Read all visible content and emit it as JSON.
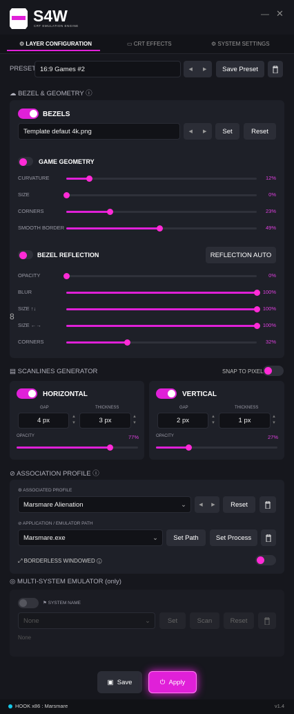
{
  "app": {
    "logo": "S4W",
    "tagline": "CRT EMULATION ENGINE"
  },
  "tabs": [
    "LAYER CONFIGURATION",
    "CRT EFFECTS",
    "SYSTEM SETTINGS"
  ],
  "preset": {
    "label": "PRESET",
    "value": "16:9 Games #2",
    "save": "Save Preset"
  },
  "bezel": {
    "title": "BEZEL & GEOMETRY",
    "bezels": {
      "label": "BEZELS",
      "file": "Template defaut 4k.png",
      "set": "Set",
      "reset": "Reset"
    },
    "geometry": {
      "label": "GAME GEOMETRY",
      "sliders": [
        {
          "name": "CURVATURE",
          "value": 12,
          "label": "12%"
        },
        {
          "name": "SIZE",
          "value": 0,
          "label": "0%"
        },
        {
          "name": "CORNERS",
          "value": 23,
          "label": "23%"
        },
        {
          "name": "SMOOTH BORDER",
          "value": 49,
          "label": "49%"
        }
      ]
    },
    "reflection": {
      "label": "BEZEL REFLECTION",
      "button": "REFLECTION AUTO",
      "sliders": [
        {
          "name": "OPACITY",
          "value": 0,
          "label": "0%"
        },
        {
          "name": "BLUR",
          "value": 100,
          "label": "100%"
        },
        {
          "name": "SIZE ↑↓",
          "value": 100,
          "label": "100%"
        },
        {
          "name": "SIZE ←→",
          "value": 100,
          "label": "100%"
        },
        {
          "name": "CORNERS",
          "value": 32,
          "label": "32%"
        }
      ]
    }
  },
  "scanlines": {
    "title": "SCANLINES GENERATOR",
    "snap": "SNAP TO PIXEL",
    "horizontal": {
      "label": "HORIZONTAL",
      "gap_label": "GAP",
      "gap": "4 px",
      "thickness_label": "THICKNESS",
      "thickness": "3 px",
      "opacity_label": "OPACITY",
      "opacity": {
        "value": 77,
        "label": "77%"
      }
    },
    "vertical": {
      "label": "VERTICAL",
      "gap_label": "GAP",
      "gap": "2 px",
      "thickness_label": "THICKNESS",
      "thickness": "1 px",
      "opacity_label": "OPACITY",
      "opacity": {
        "value": 27,
        "label": "27%"
      }
    }
  },
  "association": {
    "title": "ASSOCIATION PROFILE",
    "profile_label": "ASSOCIATED PROFILE",
    "profile": "Marsmare Alienation",
    "reset": "Reset",
    "path_label": "APPLICATION / EMULATOR PATH",
    "path": "Marsmare.exe",
    "set_path": "Set Path",
    "set_process": "Set Process",
    "borderless": "BORDERLESS WINDOWED"
  },
  "multi": {
    "title": "MULTI-SYSTEM EMULATOR (only)",
    "system_name": "SYSTEM NAME",
    "placeholder": "None",
    "set": "Set",
    "scan": "Scan",
    "reset": "Reset",
    "note": "None"
  },
  "footer": {
    "save": "Save",
    "apply": "Apply",
    "status": "HOOK x86 : Marsmare",
    "version": "v1.4"
  }
}
